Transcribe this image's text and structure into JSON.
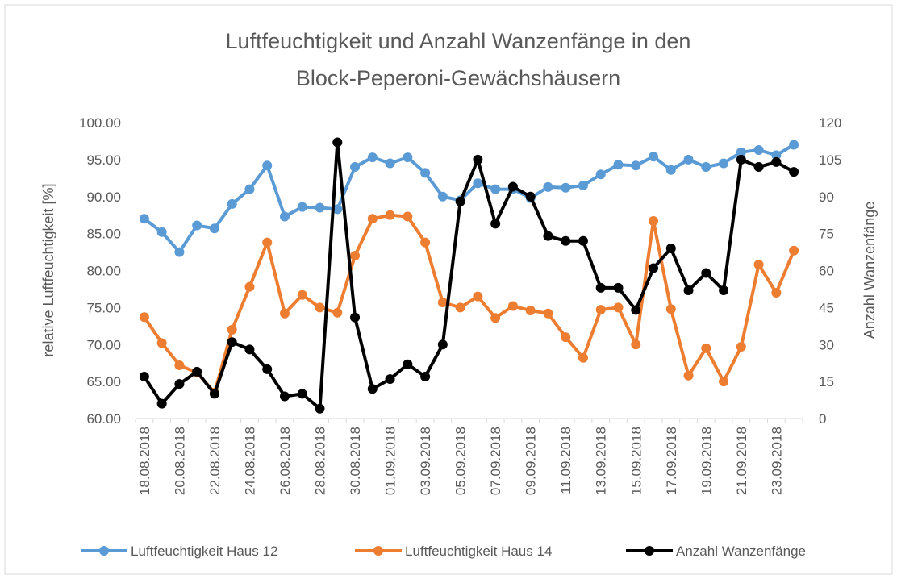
{
  "chart_data": {
    "type": "line",
    "title": [
      "Luftfeuchtigkeit und Anzahl Wanzenfänge in den",
      "Block-Peperoni-Gewächshäusern"
    ],
    "y_label": "relative Luftfeuchtigkeit [%]",
    "y2_label": "Anzahl Wanzenfänge",
    "categories": [
      "18.08.2018",
      null,
      "20.08.2018",
      null,
      "22.08.2018",
      null,
      "24.08.2018",
      null,
      "26.08.2018",
      null,
      "28.08.2018",
      null,
      "30.08.2018",
      null,
      "01.09.2018",
      null,
      "03.09.2018",
      null,
      "05.09.2018",
      null,
      "07.09.2018",
      null,
      "09.09.2018",
      null,
      "11.09.2018",
      null,
      "13.09.2018",
      null,
      "15.09.2018",
      null,
      "17.09.2018",
      null,
      "19.09.2018",
      null,
      "21.09.2018",
      null,
      "23.09.2018",
      null
    ],
    "ylim": [
      60,
      100
    ],
    "yticks": [
      {
        "value": 60,
        "label": "60.00"
      },
      {
        "value": 65,
        "label": "65.00"
      },
      {
        "value": 70,
        "label": "70.00"
      },
      {
        "value": 75,
        "label": "75.00"
      },
      {
        "value": 80,
        "label": "80.00"
      },
      {
        "value": 85,
        "label": "85.00"
      },
      {
        "value": 90,
        "label": "90.00"
      },
      {
        "value": 95,
        "label": "95.00"
      },
      {
        "value": 100,
        "label": "100.00"
      }
    ],
    "y2lim": [
      0,
      120
    ],
    "y2ticks": [
      0,
      15,
      30,
      45,
      60,
      75,
      90,
      105,
      120
    ],
    "legend": "bottom",
    "series": [
      {
        "name": "Luftfeuchtigkeit Haus 12",
        "color": "#5b9bd5",
        "values": [
          87.0,
          85.2,
          82.5,
          86.1,
          85.7,
          89.0,
          91.0,
          94.2,
          87.3,
          88.6,
          88.5,
          88.3,
          94.0,
          95.3,
          94.5,
          95.3,
          93.2,
          90.0,
          89.5,
          91.8,
          91.0,
          91.0,
          89.8,
          91.3,
          91.2,
          91.5,
          93.0,
          94.3,
          94.2,
          95.4,
          93.6,
          95.0,
          94.0,
          94.5,
          96.0,
          96.3,
          95.6,
          97.0
        ]
      },
      {
        "name": "Luftfeuchtigkeit Haus 14",
        "color": "#ed7d31",
        "values": [
          73.7,
          70.2,
          67.2,
          66.2,
          63.5,
          72.0,
          77.8,
          83.8,
          74.2,
          76.7,
          75.0,
          74.3,
          82.0,
          87.0,
          87.5,
          87.3,
          83.8,
          75.7,
          75.0,
          76.5,
          73.6,
          75.2,
          74.6,
          74.2,
          71.0,
          68.2,
          74.7,
          75.0,
          70.0,
          86.7,
          74.8,
          65.8,
          69.5,
          65.0,
          69.7,
          80.8,
          77.0,
          82.7
        ]
      },
      {
        "name": "Anzahl Wanzenfänge",
        "color": "#000000",
        "axis": "y2",
        "values": [
          17,
          6,
          14,
          19,
          10,
          31,
          28,
          20,
          9,
          10,
          4,
          112,
          41,
          12,
          16,
          22,
          17,
          30,
          88,
          105,
          79,
          94,
          90,
          74,
          72,
          72,
          53,
          53,
          44,
          61,
          69,
          52,
          59,
          52,
          105,
          102,
          104,
          100
        ]
      }
    ]
  }
}
